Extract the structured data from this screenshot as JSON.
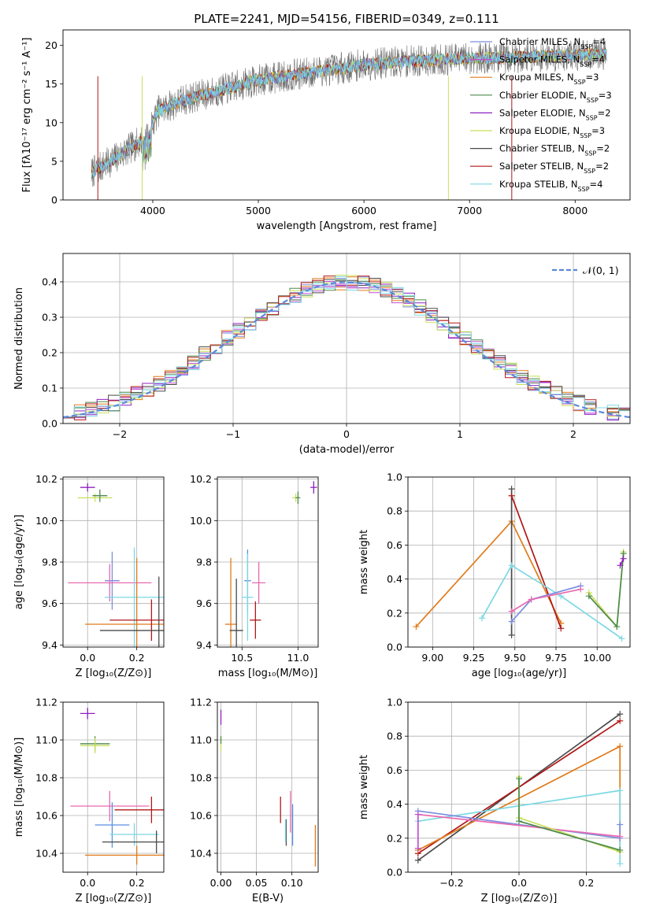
{
  "figure_title": "PLATE=2241, MJD=54156, FIBERID=0349, z=0.111",
  "colors": {
    "chab_miles": "#7b8ee0",
    "salp_miles": "#c04fd0",
    "krou_miles": "#e07b1a",
    "chab_elodie": "#4d8a4d",
    "salp_elodie": "#9020c0",
    "krou_elodie": "#c8e05a",
    "chab_stelib": "#4a4a4a",
    "salp_stelib": "#b01818",
    "krou_stelib": "#7cd8e4",
    "pink": "#e86ab0",
    "blue": "#5a8ee0",
    "normal": "#5a8ad8",
    "grid": "#b0b0b0",
    "spectrum": "#707070"
  },
  "chart_data": [
    {
      "id": "spectrum",
      "type": "line",
      "title": "PLATE=2241, MJD=54156, FIBERID=0349, z=0.111",
      "xlabel": "wavelength [Angstrom, rest frame]",
      "ylabel": "Flux [fλ10⁻¹⁷ erg cm⁻² s⁻¹ A⁻¹]",
      "xlim": [
        3150,
        8520
      ],
      "ylim": [
        0,
        22
      ],
      "xticks": [
        4000,
        5000,
        6000,
        7000,
        8000
      ],
      "yticks": [
        0,
        5,
        10,
        15,
        20
      ],
      "grid": false,
      "legend_position": "top-right",
      "continuum_x": [
        3420,
        3600,
        3800,
        3950,
        4050,
        4300,
        4600,
        5000,
        5500,
        6000,
        6500,
        7000,
        7500,
        7900,
        8300
      ],
      "continuum_y": [
        3.5,
        5.0,
        6.8,
        8.2,
        11.5,
        13.0,
        14.0,
        15.5,
        16.5,
        17.5,
        18.0,
        18.3,
        18.5,
        18.7,
        18.9
      ],
      "legend": [
        {
          "label": "Chabrier MILES, N",
          "sub": "SSP",
          "suffix": "=4",
          "color_key": "chab_miles"
        },
        {
          "label": "Salpeter MILES, N",
          "sub": "SSP",
          "suffix": "=4",
          "color_key": "salp_miles"
        },
        {
          "label": "Kroupa MILES, N",
          "sub": "SSP",
          "suffix": "=3",
          "color_key": "krou_miles"
        },
        {
          "label": "Chabrier ELODIE, N",
          "sub": "SSP",
          "suffix": "=3",
          "color_key": "chab_elodie"
        },
        {
          "label": "Salpeter ELODIE, N",
          "sub": "SSP",
          "suffix": "=2",
          "color_key": "salp_elodie"
        },
        {
          "label": "Kroupa ELODIE, N",
          "sub": "SSP",
          "suffix": "=3",
          "color_key": "krou_elodie"
        },
        {
          "label": "Chabrier STELIB, N",
          "sub": "SSP",
          "suffix": "=2",
          "color_key": "chab_stelib"
        },
        {
          "label": "Salpeter STELIB, N",
          "sub": "SSP",
          "suffix": "=2",
          "color_key": "salp_stelib"
        },
        {
          "label": "Kroupa STELIB, N",
          "sub": "SSP",
          "suffix": "=4",
          "color_key": "krou_stelib"
        }
      ]
    },
    {
      "id": "residuals",
      "type": "line",
      "xlabel": "(data-model)/error",
      "ylabel": "Normed distribution",
      "xlim": [
        -2.5,
        2.5
      ],
      "ylim": [
        0,
        0.48
      ],
      "xticks": [
        -2,
        -1,
        0,
        1,
        2
      ],
      "xticklabels": [
        "−2",
        "−1",
        "0",
        "1",
        "2"
      ],
      "yticks": [
        0.0,
        0.1,
        0.2,
        0.3,
        0.4
      ],
      "yticklabels": [
        "0.0",
        "0.1",
        "0.2",
        "0.3",
        "0.4"
      ],
      "grid": true,
      "legend_position": "top-right",
      "legend_label": "𝒩(0, 1)",
      "bin_width": 0.1,
      "normal": {
        "mean": 0,
        "sigma": 1
      }
    },
    {
      "id": "age_vs_Z",
      "type": "scatter",
      "xlabel": "Z [log₁₀(Z/Z⊙)]",
      "ylabel": "age  [log₁₀(age/yr)]",
      "xlim": [
        -0.1,
        0.31
      ],
      "ylim": [
        9.39,
        10.21
      ],
      "xticks": [
        0.0,
        0.2
      ],
      "xticklabels": [
        "0.0",
        "0.2"
      ],
      "yticks": [
        9.4,
        9.6,
        9.8,
        10.0,
        10.2
      ],
      "yticklabels": [
        "9.4",
        "9.6",
        "9.8",
        "10.0",
        "10.2"
      ],
      "grid": true,
      "points": [
        {
          "color_key": "salp_elodie",
          "x": 0.0,
          "xerr": 0.03,
          "y": 10.16,
          "yerr": 0.02
        },
        {
          "color_key": "krou_elodie",
          "x": 0.03,
          "xerr": 0.07,
          "y": 10.11,
          "yerr": 0.02
        },
        {
          "color_key": "chab_elodie",
          "x": 0.05,
          "xerr": 0.03,
          "y": 10.12,
          "yerr": 0.03
        },
        {
          "color_key": "chab_miles",
          "x": 0.1,
          "xerr": 0.03,
          "y": 9.71,
          "yerr": 0.14
        },
        {
          "color_key": "pink",
          "x": 0.09,
          "xerr": 0.17,
          "y": 9.7,
          "yerr": 0.09
        },
        {
          "color_key": "krou_stelib",
          "x": 0.19,
          "xerr": 0.12,
          "y": 9.63,
          "yerr": 0.24
        },
        {
          "color_key": "krou_miles",
          "x": 0.2,
          "xerr": 0.21,
          "y": 9.5,
          "yerr": 0.32
        },
        {
          "color_key": "salp_stelib",
          "x": 0.26,
          "xerr": 0.17,
          "y": 9.52,
          "yerr": 0.1
        },
        {
          "color_key": "chab_stelib",
          "x": 0.29,
          "xerr": 0.24,
          "y": 9.47,
          "yerr": 0.26
        }
      ]
    },
    {
      "id": "age_vs_mass",
      "type": "scatter",
      "xlabel": "mass [log₁₀(M/M⊙)]",
      "ylabel": "",
      "xlim": [
        10.28,
        11.18
      ],
      "ylim": [
        9.39,
        10.21
      ],
      "xticks": [
        10.5,
        11.0
      ],
      "xticklabels": [
        "10.5",
        "11.0"
      ],
      "yticks": [
        9.4,
        9.6,
        9.8,
        10.0,
        10.2
      ],
      "yticklabels": [
        "9.4",
        "9.6",
        "9.8",
        "10.0",
        "10.2"
      ],
      "grid": true,
      "points": [
        {
          "color_key": "salp_elodie",
          "x": 11.14,
          "xerr": 0.03,
          "y": 10.16,
          "yerr": 0.03
        },
        {
          "color_key": "krou_elodie",
          "x": 10.98,
          "xerr": 0.03,
          "y": 10.11,
          "yerr": 0.02
        },
        {
          "color_key": "chab_elodie",
          "x": 11.0,
          "xerr": 0.02,
          "y": 10.11,
          "yerr": 0.03
        },
        {
          "color_key": "blue",
          "x": 10.55,
          "xerr": 0.03,
          "y": 9.71,
          "yerr": 0.15
        },
        {
          "color_key": "pink",
          "x": 10.65,
          "xerr": 0.06,
          "y": 9.7,
          "yerr": 0.1
        },
        {
          "color_key": "krou_stelib",
          "x": 10.55,
          "xerr": 0.05,
          "y": 9.63,
          "yerr": 0.21
        },
        {
          "color_key": "krou_miles",
          "x": 10.4,
          "xerr": 0.05,
          "y": 9.5,
          "yerr": 0.32
        },
        {
          "color_key": "salp_stelib",
          "x": 10.62,
          "xerr": 0.05,
          "y": 9.52,
          "yerr": 0.09
        },
        {
          "color_key": "chab_stelib",
          "x": 10.45,
          "xerr": 0.06,
          "y": 9.47,
          "yerr": 0.25
        }
      ]
    },
    {
      "id": "mass_weight_vs_age",
      "type": "line",
      "xlabel": "age  [log₁₀(age/yr)]",
      "ylabel": "mass weight",
      "xlim": [
        8.85,
        10.2
      ],
      "ylim": [
        0,
        1
      ],
      "xticks": [
        9.0,
        9.25,
        9.5,
        9.75,
        10.0
      ],
      "xticklabels": [
        "9.00",
        "9.25",
        "9.50",
        "9.75",
        "10.00"
      ],
      "yticks": [
        0,
        0.2,
        0.4,
        0.6,
        0.8,
        1.0
      ],
      "yticklabels": [
        "0.0",
        "0.2",
        "0.4",
        "0.6",
        "0.8",
        "1.0"
      ],
      "grid": true,
      "series": [
        {
          "color_key": "krou_miles",
          "x": [
            8.9,
            9.48,
            9.78
          ],
          "y": [
            0.12,
            0.74,
            0.14
          ]
        },
        {
          "color_key": "chab_stelib",
          "x": [
            9.48,
            9.48
          ],
          "y": [
            0.07,
            0.93
          ]
        },
        {
          "color_key": "salp_stelib",
          "x": [
            9.48,
            9.78
          ],
          "y": [
            0.89,
            0.11
          ]
        },
        {
          "color_key": "krou_stelib",
          "x": [
            9.3,
            9.48,
            9.78,
            10.15
          ],
          "y": [
            0.17,
            0.48,
            0.3,
            0.05
          ]
        },
        {
          "color_key": "chab_miles",
          "x": [
            9.48,
            9.6,
            9.9
          ],
          "y": [
            0.15,
            0.28,
            0.36
          ]
        },
        {
          "color_key": "pink",
          "x": [
            9.48,
            9.6,
            9.9
          ],
          "y": [
            0.21,
            0.28,
            0.34
          ]
        },
        {
          "color_key": "krou_elodie",
          "x": [
            9.95,
            10.12,
            10.16
          ],
          "y": [
            0.32,
            0.12,
            0.56
          ]
        },
        {
          "color_key": "chab_elodie",
          "x": [
            9.95,
            10.12,
            10.16
          ],
          "y": [
            0.3,
            0.12,
            0.55
          ]
        },
        {
          "color_key": "salp_elodie",
          "x": [
            10.14,
            10.16
          ],
          "y": [
            0.48,
            0.52
          ]
        }
      ]
    },
    {
      "id": "mass_vs_Z",
      "type": "scatter",
      "xlabel": "Z [log₁₀(Z/Z⊙)]",
      "ylabel": "mass [log₁₀(M/M⊙)]",
      "xlim": [
        -0.1,
        0.31
      ],
      "ylim": [
        10.3,
        11.2
      ],
      "xticks": [
        0.0,
        0.2
      ],
      "xticklabels": [
        "0.0",
        "0.2"
      ],
      "yticks": [
        10.4,
        10.6,
        10.8,
        11.0,
        11.2
      ],
      "yticklabels": [
        "10.4",
        "10.6",
        "10.8",
        "11.0",
        "11.2"
      ],
      "grid": true,
      "points": [
        {
          "color_key": "salp_elodie",
          "x": 0.0,
          "xerr": 0.03,
          "y": 11.14,
          "yerr": 0.03
        },
        {
          "color_key": "chab_elodie",
          "x": 0.03,
          "xerr": 0.06,
          "y": 10.98,
          "yerr": 0.04
        },
        {
          "color_key": "krou_elodie",
          "x": 0.03,
          "xerr": 0.06,
          "y": 10.97,
          "yerr": 0.04
        },
        {
          "color_key": "pink",
          "x": 0.09,
          "xerr": 0.16,
          "y": 10.65,
          "yerr": 0.08
        },
        {
          "color_key": "salp_stelib",
          "x": 0.26,
          "xerr": 0.15,
          "y": 10.63,
          "yerr": 0.07
        },
        {
          "color_key": "blue",
          "x": 0.1,
          "xerr": 0.07,
          "y": 10.55,
          "yerr": 0.12
        },
        {
          "color_key": "krou_stelib",
          "x": 0.19,
          "xerr": 0.1,
          "y": 10.5,
          "yerr": 0.06
        },
        {
          "color_key": "chab_stelib",
          "x": 0.28,
          "xerr": 0.22,
          "y": 10.46,
          "yerr": 0.06
        },
        {
          "color_key": "krou_miles",
          "x": 0.2,
          "xerr": 0.21,
          "y": 10.39,
          "yerr": 0.05
        }
      ]
    },
    {
      "id": "mass_vs_ebv",
      "type": "scatter",
      "xlabel": "E(B-V)",
      "ylabel": "",
      "xlim": [
        -0.005,
        0.137
      ],
      "ylim": [
        10.3,
        11.2
      ],
      "xticks": [
        0.0,
        0.05,
        0.1
      ],
      "xticklabels": [
        "0.00",
        "0.05",
        "0.10"
      ],
      "yticks": [
        10.4,
        10.6,
        10.8,
        11.0,
        11.2
      ],
      "yticklabels": [
        "10.4",
        "10.6",
        "10.8",
        "11.0",
        "11.2"
      ],
      "grid": true,
      "points": [
        {
          "color_key": "salp_elodie",
          "x": 0.0,
          "xerr": 0.0,
          "y": 11.12,
          "yerr": 0.04
        },
        {
          "color_key": "krou_elodie",
          "x": 0.0,
          "xerr": 0.0,
          "y": 10.98,
          "yerr": 0.04
        },
        {
          "color_key": "chab_elodie",
          "x": 0.0,
          "xerr": 0.0,
          "y": 11.0,
          "yerr": 0.02
        },
        {
          "color_key": "salp_stelib",
          "x": 0.084,
          "xerr": 0.0,
          "y": 10.63,
          "yerr": 0.07
        },
        {
          "color_key": "pink",
          "x": 0.098,
          "xerr": 0.0,
          "y": 10.62,
          "yerr": 0.11
        },
        {
          "color_key": "blue",
          "x": 0.101,
          "xerr": 0.0,
          "y": 10.55,
          "yerr": 0.11
        },
        {
          "color_key": "chab_stelib",
          "x": 0.092,
          "xerr": 0.0,
          "y": 10.51,
          "yerr": 0.07
        },
        {
          "color_key": "krou_stelib",
          "x": 0.091,
          "xerr": 0.0,
          "y": 10.52,
          "yerr": 0.06
        },
        {
          "color_key": "krou_miles",
          "x": 0.133,
          "xerr": 0.0,
          "y": 10.44,
          "yerr": 0.11
        }
      ]
    },
    {
      "id": "mass_weight_vs_Z",
      "type": "line",
      "xlabel": "Z [log₁₀(Z/Z⊙)]",
      "ylabel": "mass weight",
      "xlim": [
        -0.33,
        0.33
      ],
      "ylim": [
        0,
        1
      ],
      "xticks": [
        -0.2,
        0.0,
        0.2
      ],
      "xticklabels": [
        "−0.2",
        "0.0",
        "0.2"
      ],
      "yticks": [
        0,
        0.2,
        0.4,
        0.6,
        0.8,
        1.0
      ],
      "yticklabels": [
        "0.0",
        "0.2",
        "0.4",
        "0.6",
        "0.8",
        "1.0"
      ],
      "grid": true,
      "series": [
        {
          "color_key": "chab_stelib",
          "x": [
            -0.3,
            0.3
          ],
          "y": [
            0.07,
            0.93
          ]
        },
        {
          "color_key": "salp_stelib",
          "x": [
            -0.3,
            0.3
          ],
          "y": [
            0.11,
            0.89
          ]
        },
        {
          "color_key": "krou_miles",
          "x": [
            -0.3,
            0.3,
            0.3
          ],
          "y": [
            0.13,
            0.74,
            0.12
          ]
        },
        {
          "color_key": "krou_stelib",
          "x": [
            -0.3,
            0.3,
            0.3
          ],
          "y": [
            0.3,
            0.48,
            0.05
          ]
        },
        {
          "color_key": "chab_miles",
          "x": [
            -0.3,
            0.3,
            0.3
          ],
          "y": [
            0.36,
            0.2,
            0.28
          ]
        },
        {
          "color_key": "pink",
          "x": [
            -0.3,
            0.3
          ],
          "y": [
            0.34,
            0.21
          ]
        },
        {
          "color_key": "salp_miles",
          "x": [
            -0.3,
            -0.3
          ],
          "y": [
            0.14,
            0.34
          ]
        },
        {
          "color_key": "krou_elodie",
          "x": [
            0.0,
            0.0,
            0.3
          ],
          "y": [
            0.56,
            0.32,
            0.12
          ]
        },
        {
          "color_key": "chab_elodie",
          "x": [
            0.0,
            0.0,
            0.3
          ],
          "y": [
            0.55,
            0.3,
            0.13
          ]
        }
      ]
    }
  ]
}
